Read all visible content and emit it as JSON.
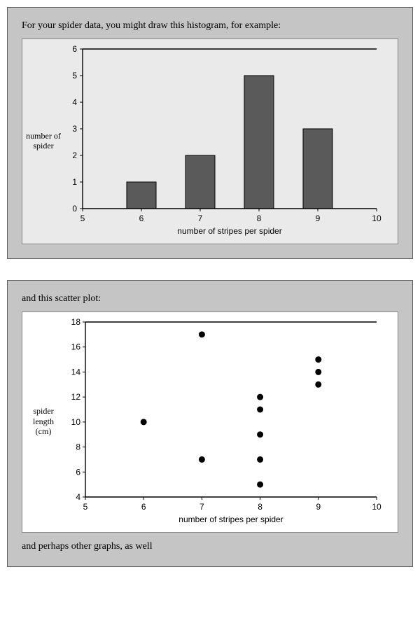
{
  "panel1": {
    "intro": "For your spider data, you might draw this histogram, for example:",
    "chart": {
      "type": "bar",
      "plot_background": "#eaeaea",
      "card_border": "#888888",
      "axis_color": "#000000",
      "grid_color": "#000000",
      "bar_color": "#5a5a5a",
      "bar_border": "#000000",
      "text_color": "#000000",
      "ylabel": "number of spider",
      "xlabel": "number of stripes per spider",
      "tick_fontsize": 12,
      "label_fontsize": 12,
      "ylim": [
        0,
        6
      ],
      "ytick_step": 1,
      "xticks": [
        5,
        6,
        7,
        8,
        9,
        10
      ],
      "categories": [
        6,
        7,
        8,
        9
      ],
      "values": [
        1,
        2,
        5,
        3
      ],
      "bar_width": 0.5
    }
  },
  "panel2": {
    "intro": "and this scatter plot:",
    "outro": "and perhaps other graphs, as well",
    "chart": {
      "type": "scatter",
      "plot_background": "#ffffff",
      "card_border": "#888888",
      "axis_color": "#000000",
      "marker_color": "#000000",
      "text_color": "#000000",
      "ylabel": "spider length (cm)",
      "xlabel": "number of stripes per spider",
      "tick_fontsize": 12,
      "label_fontsize": 12,
      "xlim": [
        5,
        10
      ],
      "ylim": [
        4,
        18
      ],
      "xtick_step": 1,
      "ytick_step": 2,
      "xticks": [
        5,
        6,
        7,
        8,
        9,
        10
      ],
      "yticks": [
        4,
        6,
        8,
        10,
        12,
        14,
        16,
        18
      ],
      "marker_radius": 4.5,
      "points": [
        {
          "x": 6,
          "y": 10
        },
        {
          "x": 7,
          "y": 7
        },
        {
          "x": 7,
          "y": 17
        },
        {
          "x": 8,
          "y": 5
        },
        {
          "x": 8,
          "y": 7
        },
        {
          "x": 8,
          "y": 9
        },
        {
          "x": 8,
          "y": 11
        },
        {
          "x": 8,
          "y": 12
        },
        {
          "x": 9,
          "y": 13
        },
        {
          "x": 9,
          "y": 14
        },
        {
          "x": 9,
          "y": 15
        }
      ]
    }
  }
}
